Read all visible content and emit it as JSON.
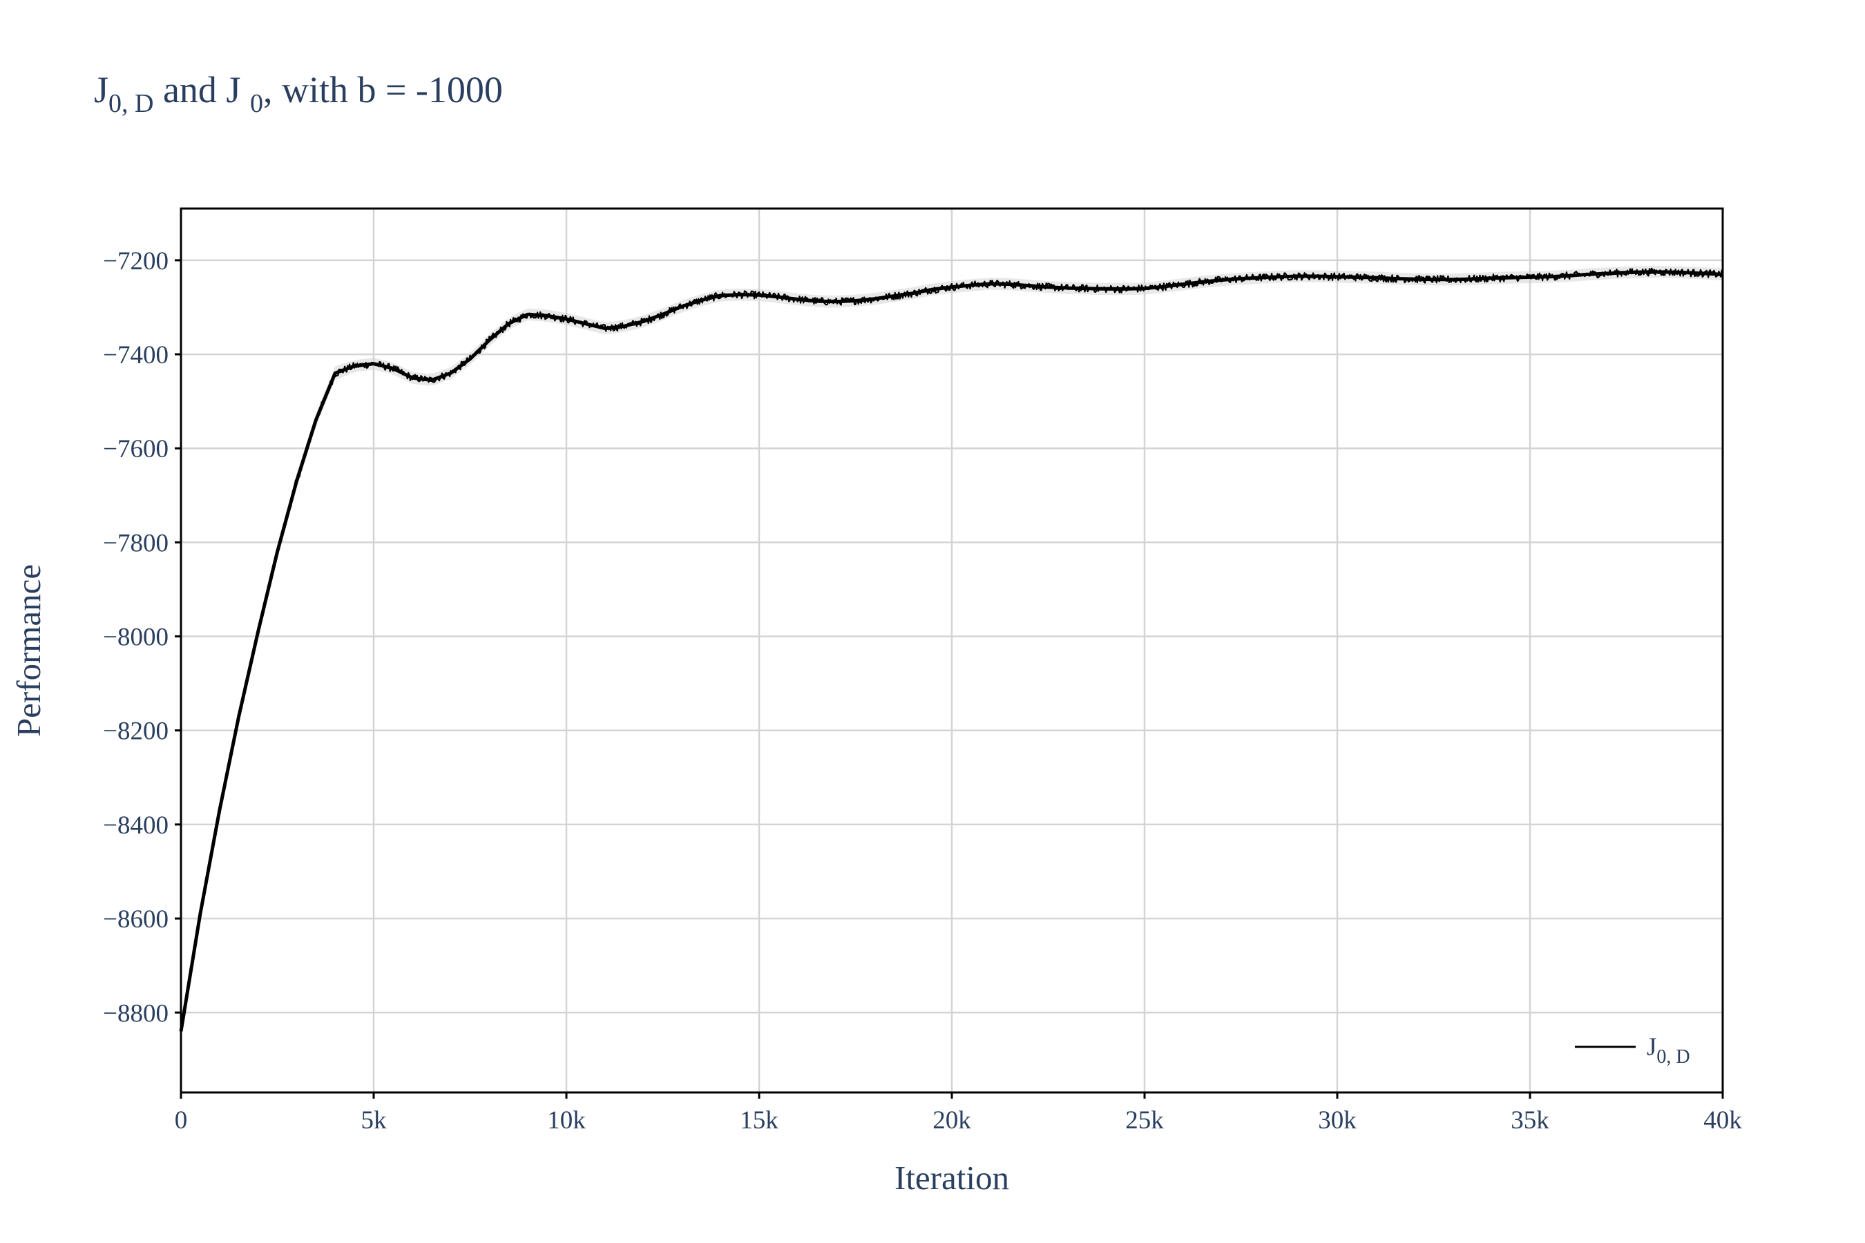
{
  "chart_data": {
    "type": "line",
    "title": {
      "main": "J",
      "sub1": "0, D",
      "mid": " and J ",
      "sub2": "0",
      "tail": ", with b = -1000"
    },
    "xlabel": "Iteration",
    "ylabel": "Performance",
    "xlim": [
      0,
      40000
    ],
    "ylim": [
      -8970,
      -7090
    ],
    "x_ticks": [
      {
        "value": 0,
        "label": "0"
      },
      {
        "value": 5000,
        "label": "5k"
      },
      {
        "value": 10000,
        "label": "10k"
      },
      {
        "value": 15000,
        "label": "15k"
      },
      {
        "value": 20000,
        "label": "20k"
      },
      {
        "value": 25000,
        "label": "25k"
      },
      {
        "value": 30000,
        "label": "30k"
      },
      {
        "value": 35000,
        "label": "35k"
      },
      {
        "value": 40000,
        "label": "40k"
      }
    ],
    "y_ticks": [
      {
        "value": -7200,
        "label": "−7200"
      },
      {
        "value": -7400,
        "label": "−7400"
      },
      {
        "value": -7600,
        "label": "−7600"
      },
      {
        "value": -7800,
        "label": "−7800"
      },
      {
        "value": -8000,
        "label": "−8000"
      },
      {
        "value": -8200,
        "label": "−8200"
      },
      {
        "value": -8400,
        "label": "−8400"
      },
      {
        "value": -8600,
        "label": "−8600"
      },
      {
        "value": -8800,
        "label": "−8800"
      }
    ],
    "grid": true,
    "legend_position": "bottom-right",
    "series": [
      {
        "name": "J",
        "name_sub": "0, D",
        "color": "#000000",
        "band_color": "#cccccc",
        "x": [
          0,
          500,
          1000,
          1500,
          2000,
          2500,
          3000,
          3500,
          4000,
          4500,
          5000,
          5500,
          6000,
          6500,
          7000,
          7500,
          8000,
          8500,
          9000,
          9500,
          10000,
          10500,
          11000,
          11500,
          12000,
          12500,
          13000,
          13500,
          14000,
          14500,
          15000,
          15500,
          16000,
          16500,
          17000,
          17500,
          18000,
          18500,
          19000,
          19500,
          20000,
          20500,
          21000,
          21500,
          22000,
          22500,
          23000,
          23500,
          24000,
          24500,
          25000,
          25500,
          26000,
          26500,
          27000,
          27500,
          28000,
          28500,
          29000,
          29500,
          30000,
          30500,
          31000,
          31500,
          32000,
          32500,
          33000,
          33500,
          34000,
          34500,
          35000,
          35500,
          36000,
          36500,
          37000,
          37500,
          38000,
          38500,
          39000,
          39500,
          40000
        ],
        "y": [
          -8840,
          -8590,
          -8370,
          -8170,
          -7990,
          -7820,
          -7670,
          -7540,
          -7440,
          -7425,
          -7420,
          -7430,
          -7450,
          -7455,
          -7440,
          -7410,
          -7370,
          -7335,
          -7315,
          -7318,
          -7325,
          -7335,
          -7345,
          -7340,
          -7330,
          -7315,
          -7298,
          -7285,
          -7275,
          -7273,
          -7274,
          -7278,
          -7283,
          -7287,
          -7288,
          -7286,
          -7282,
          -7276,
          -7270,
          -7262,
          -7257,
          -7253,
          -7250,
          -7251,
          -7254,
          -7257,
          -7259,
          -7260,
          -7261,
          -7261,
          -7260,
          -7256,
          -7251,
          -7246,
          -7242,
          -7239,
          -7237,
          -7235,
          -7234,
          -7234,
          -7235,
          -7236,
          -7237,
          -7239,
          -7240,
          -7241,
          -7241,
          -7240,
          -7238,
          -7237,
          -7236,
          -7235,
          -7233,
          -7230,
          -7228,
          -7226,
          -7225,
          -7225,
          -7226,
          -7228,
          -7230
        ],
        "noise": [
          6,
          10,
          10,
          10,
          10,
          10,
          10,
          9,
          9,
          8,
          8,
          8,
          8,
          8,
          8,
          8,
          8,
          8,
          8,
          8,
          8,
          8,
          8,
          8,
          8,
          8,
          8,
          8,
          8,
          8,
          8,
          8,
          8,
          8,
          8,
          8,
          8,
          8,
          8,
          8,
          8,
          8,
          8,
          8,
          8,
          8,
          8,
          8,
          8,
          8,
          8,
          8,
          8,
          8,
          8,
          8,
          8,
          8,
          8,
          8,
          8,
          8,
          8,
          8,
          8,
          8,
          8,
          8,
          8,
          8,
          8,
          8,
          8,
          8,
          8,
          8,
          8,
          8,
          8,
          8,
          8
        ]
      }
    ]
  }
}
